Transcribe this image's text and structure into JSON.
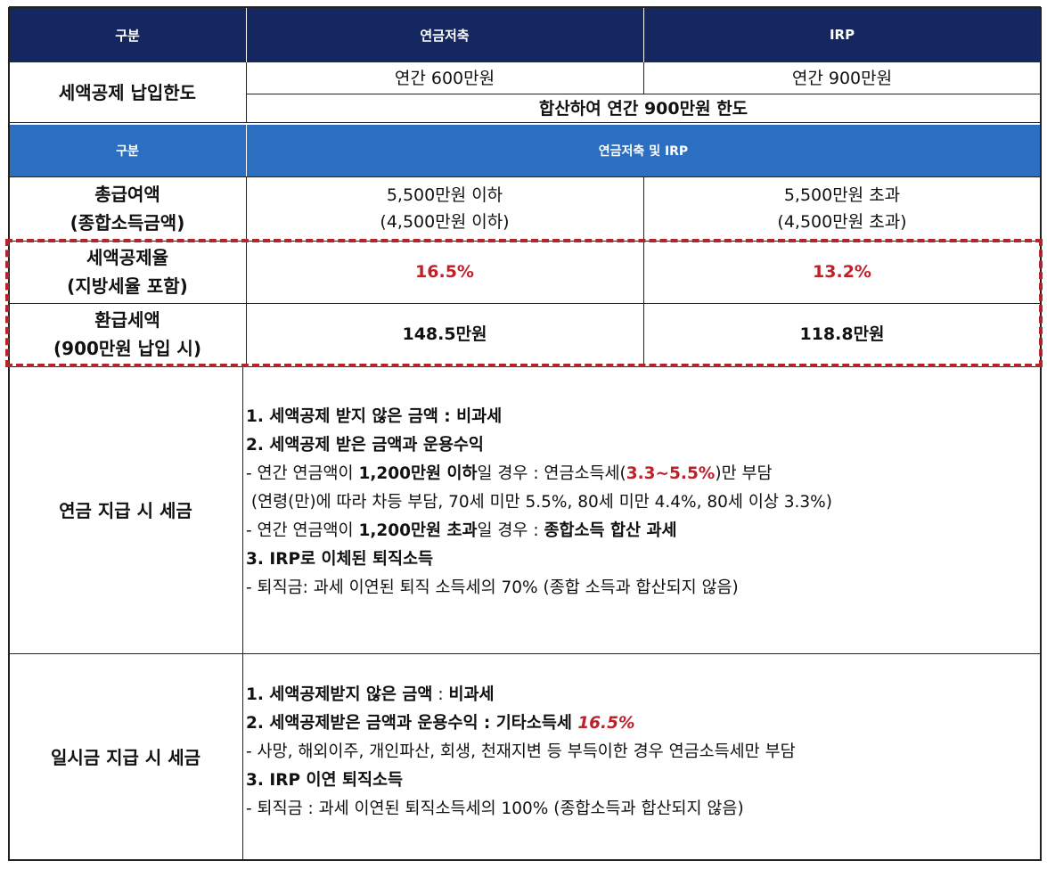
{
  "table1": {
    "header": {
      "col0": "구분",
      "col1": "연금저축",
      "col2": "IRP"
    },
    "limit_row": {
      "label": "세액공제 납입한도",
      "pension_savings": "연간 600만원",
      "irp": "연간 900만원",
      "combined": "합산하여 연간 900만원 한도"
    }
  },
  "table2": {
    "header": {
      "col0": "구분",
      "col1": "연금저축 및 IRP"
    },
    "income_row": {
      "label_line1": "총급여액",
      "label_line2": "(종합소득금액)",
      "low_line1": "5,500만원 이하",
      "low_line2": "(4,500만원 이하)",
      "high_line1": "5,500만원 초과",
      "high_line2": "(4,500만원 초과)"
    },
    "rate_row": {
      "label_line1": "세액공제율",
      "label_line2": "(지방세율 포함)",
      "low": "16.5%",
      "high": "13.2%"
    },
    "refund_row": {
      "label_line1": "환급세액",
      "label_line2": "(900만원 납입 시)",
      "low": "148.5만원",
      "high": "118.8만원"
    }
  },
  "pension_tax": {
    "label": "연금 지급 시 세금",
    "l1": "1. 세액공제 받지 않은 금액 : 비과세",
    "l2": "2. 세액공제 받은 금액과 운용수익",
    "l3_a": "- 연간 연금액이 ",
    "l3_b": "1,200만원 이하",
    "l3_c": "일 경우 : 연금소득세(",
    "l3_d": "3.3~5.5%",
    "l3_e": ")만 부담",
    "l4": " (연령(만)에 따라 차등 부담, 70세 미만 5.5%, 80세 미만 4.4%, 80세 이상 3.3%)",
    "l5_a": "- 연간 연금액이 ",
    "l5_b": "1,200만원 초과",
    "l5_c": "일 경우 : ",
    "l5_d": "종합소득 합산 과세",
    "l6": "3. IRP로 이체된 퇴직소득",
    "l7": "- 퇴직금: 과세 이연된 퇴직 소득세의 70% (종합 소득과 합산되지 않음)"
  },
  "lump_tax": {
    "label": "일시금 지급 시 세금",
    "l1_a": "1. 세액공제받지 않은 금액",
    "l1_b": " : ",
    "l1_c": "비과세",
    "l2_a": "2. 세액공제받은 금액과 운용수익 : 기타소득세 ",
    "l2_b": "16.5%",
    "l3": "- 사망, 해외이주, 개인파산, 회생, 천재지변 등 부득이한 경우 연금소득세만 부담",
    "l4": "3. IRP 이연 퇴직소득",
    "l5": "- 퇴직금 : 과세 이연된 퇴직소득세의 100% (종합소득과 합산되지 않음)"
  },
  "colors": {
    "navy": "#14275e",
    "blue": "#2c6fc0",
    "red": "#c0202a"
  }
}
